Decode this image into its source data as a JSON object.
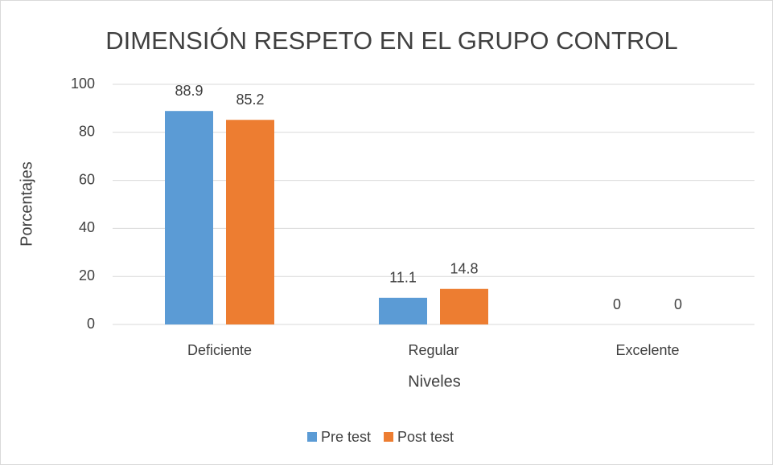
{
  "chart_data": {
    "type": "bar",
    "title": "DIMENSIÓN RESPETO EN EL GRUPO CONTROL",
    "x_label": "Niveles",
    "y_label": "Porcentajes",
    "categories": [
      "Deficiente",
      "Regular",
      "Excelente"
    ],
    "series": [
      {
        "name": "Pre test",
        "color": "#5b9bd5",
        "values": [
          88.9,
          11.1,
          0
        ]
      },
      {
        "name": "Post test",
        "color": "#ed7d31",
        "values": [
          85.2,
          14.8,
          0
        ]
      }
    ],
    "ylim": [
      0,
      100
    ],
    "yticks": [
      0,
      20,
      40,
      60,
      80,
      100
    ],
    "grid": true,
    "legend": "bottom"
  }
}
